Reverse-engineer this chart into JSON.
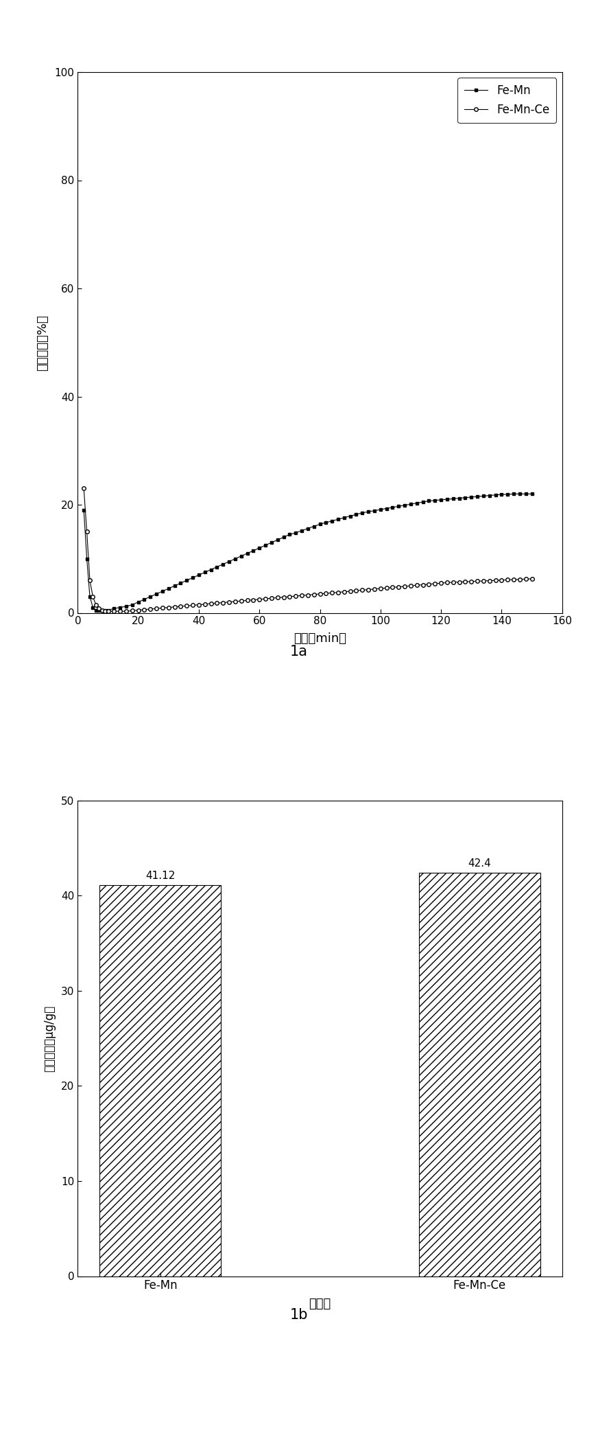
{
  "fig1a": {
    "xlabel": "时间（min）",
    "ylabel": "汞穿透率（%）",
    "xlim": [
      0,
      160
    ],
    "ylim": [
      0,
      100
    ],
    "xticks": [
      0,
      20,
      40,
      60,
      80,
      100,
      120,
      140,
      160
    ],
    "yticks": [
      0,
      20,
      40,
      60,
      80,
      100
    ],
    "label_femn": "Fe-Mn",
    "label_femn_ce": "Fe-Mn-Ce",
    "femn_x": [
      2,
      3,
      4,
      5,
      6,
      7,
      8,
      9,
      10,
      12,
      14,
      16,
      18,
      20,
      22,
      24,
      26,
      28,
      30,
      32,
      34,
      36,
      38,
      40,
      42,
      44,
      46,
      48,
      50,
      52,
      54,
      56,
      58,
      60,
      62,
      64,
      66,
      68,
      70,
      72,
      74,
      76,
      78,
      80,
      82,
      84,
      86,
      88,
      90,
      92,
      94,
      96,
      98,
      100,
      102,
      104,
      106,
      108,
      110,
      112,
      114,
      116,
      118,
      120,
      122,
      124,
      126,
      128,
      130,
      132,
      134,
      136,
      138,
      140,
      142,
      144,
      146,
      148,
      150
    ],
    "femn_y": [
      19,
      10,
      3,
      1,
      0.5,
      0.5,
      0.5,
      0.5,
      0.5,
      0.8,
      1.0,
      1.2,
      1.5,
      2.0,
      2.5,
      3.0,
      3.5,
      4.0,
      4.5,
      5.0,
      5.5,
      6.0,
      6.5,
      7.0,
      7.5,
      8.0,
      8.5,
      9.0,
      9.5,
      10.0,
      10.5,
      11.0,
      11.5,
      12.0,
      12.5,
      13.0,
      13.5,
      14.0,
      14.5,
      14.8,
      15.2,
      15.6,
      16.0,
      16.4,
      16.7,
      17.0,
      17.3,
      17.6,
      17.9,
      18.2,
      18.5,
      18.7,
      18.9,
      19.1,
      19.3,
      19.5,
      19.7,
      19.9,
      20.1,
      20.3,
      20.5,
      20.7,
      20.8,
      20.9,
      21.0,
      21.1,
      21.2,
      21.3,
      21.4,
      21.5,
      21.6,
      21.7,
      21.8,
      21.9,
      21.9,
      22.0,
      22.0,
      22.0,
      22.0
    ],
    "femn_ce_x": [
      2,
      3,
      4,
      5,
      6,
      7,
      8,
      9,
      10,
      12,
      14,
      16,
      18,
      20,
      22,
      24,
      26,
      28,
      30,
      32,
      34,
      36,
      38,
      40,
      42,
      44,
      46,
      48,
      50,
      52,
      54,
      56,
      58,
      60,
      62,
      64,
      66,
      68,
      70,
      72,
      74,
      76,
      78,
      80,
      82,
      84,
      86,
      88,
      90,
      92,
      94,
      96,
      98,
      100,
      102,
      104,
      106,
      108,
      110,
      112,
      114,
      116,
      118,
      120,
      122,
      124,
      126,
      128,
      130,
      132,
      134,
      136,
      138,
      140,
      142,
      144,
      146,
      148,
      150
    ],
    "femn_ce_y": [
      23,
      15,
      6,
      3,
      1.5,
      0.8,
      0.5,
      0.3,
      0.3,
      0.3,
      0.3,
      0.3,
      0.4,
      0.5,
      0.6,
      0.7,
      0.8,
      0.9,
      1.0,
      1.1,
      1.2,
      1.3,
      1.4,
      1.5,
      1.6,
      1.7,
      1.8,
      1.9,
      2.0,
      2.1,
      2.2,
      2.3,
      2.4,
      2.5,
      2.6,
      2.7,
      2.8,
      2.9,
      3.0,
      3.1,
      3.2,
      3.3,
      3.4,
      3.5,
      3.6,
      3.7,
      3.8,
      3.9,
      4.0,
      4.1,
      4.2,
      4.3,
      4.4,
      4.5,
      4.6,
      4.7,
      4.8,
      4.9,
      5.0,
      5.1,
      5.2,
      5.3,
      5.4,
      5.5,
      5.6,
      5.65,
      5.7,
      5.75,
      5.8,
      5.85,
      5.9,
      5.95,
      6.0,
      6.05,
      6.1,
      6.15,
      6.2,
      6.25,
      6.3
    ]
  },
  "caption1a": "1a",
  "fig1b": {
    "categories": [
      "Fe-Mn",
      "Fe-Mn-Ce"
    ],
    "values": [
      41.12,
      42.4
    ],
    "value_labels": [
      "41.12",
      "42.4"
    ],
    "xlabel": "吸附剂",
    "ylabel": "汞吸附量（μg/g）",
    "ylim": [
      0,
      50
    ],
    "yticks": [
      0,
      10,
      20,
      30,
      40,
      50
    ],
    "hatch": "///",
    "bar_color": "white",
    "bar_edgecolor": "black"
  },
  "caption1b": "1b",
  "bg_color": "#ffffff",
  "text_color": "#000000",
  "line_color": "#000000"
}
